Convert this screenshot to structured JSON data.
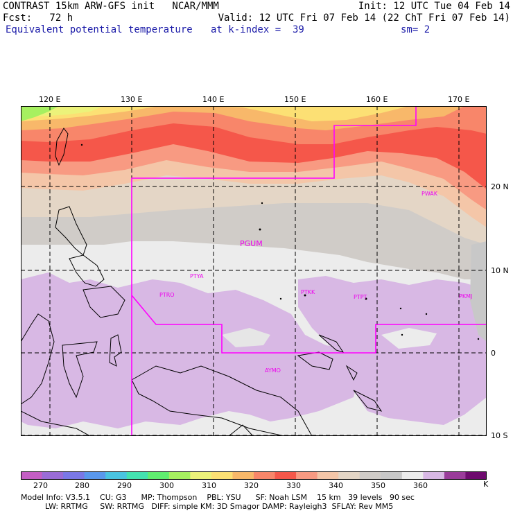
{
  "header": {
    "l1_left": "CONTRAST 15km ARW-GFS init   NCAR/MMM",
    "l1_right": "Init: 12 UTC Tue 04 Feb 14",
    "l2_left": "Fcst:   72 h",
    "l2_right": "Valid: 12 UTC Fri 07 Feb 14 (22 ChT Fri 07 Feb 14)",
    "l3_field": "Equivalent potential temperature",
    "l3_level": "at k-index =  39",
    "l3_smooth": "sm= 2"
  },
  "axes": {
    "lon_labels": [
      "120 E",
      "130 E",
      "140 E",
      "150 E",
      "160 E",
      "170 E"
    ],
    "lat_labels": [
      "20 N",
      "10 N",
      "0",
      "10 S"
    ]
  },
  "stations": [
    "PWAK",
    "PGUM",
    "PTYA",
    "PTRO",
    "PTKK",
    "PTPT",
    "PKMJ",
    "AYMO"
  ],
  "colorbar": {
    "labels": [
      "270",
      "280",
      "290",
      "300",
      "310",
      "320",
      "330",
      "340",
      "350",
      "360",
      "K"
    ],
    "colors": [
      "#c45ec4",
      "#9a6cd6",
      "#7a78e6",
      "#5a98ec",
      "#4ac4e0",
      "#44e2b0",
      "#60ee70",
      "#a6f060",
      "#ecf27a",
      "#fce074",
      "#f8b86a",
      "#f8866a",
      "#f5574a",
      "#f89a82",
      "#f4c6a8",
      "#e4d6c6",
      "#d0ccc8",
      "#c8c8c8",
      "#ececec",
      "#d8b8e4",
      "#9a3c9a",
      "#6e0a6e"
    ]
  },
  "footer": {
    "line1": "Model Info: V3.5.1    CU: G3      MP: Thompson    PBL: YSU      SF: Noah LSM    15 km   39 levels   90 sec",
    "line2": "          LW: RRTMG     SW: RRTMG   DIFF: simple KM: 3D Smagor DAMP: Rayleigh3  SFLAY: Rev MM5"
  }
}
